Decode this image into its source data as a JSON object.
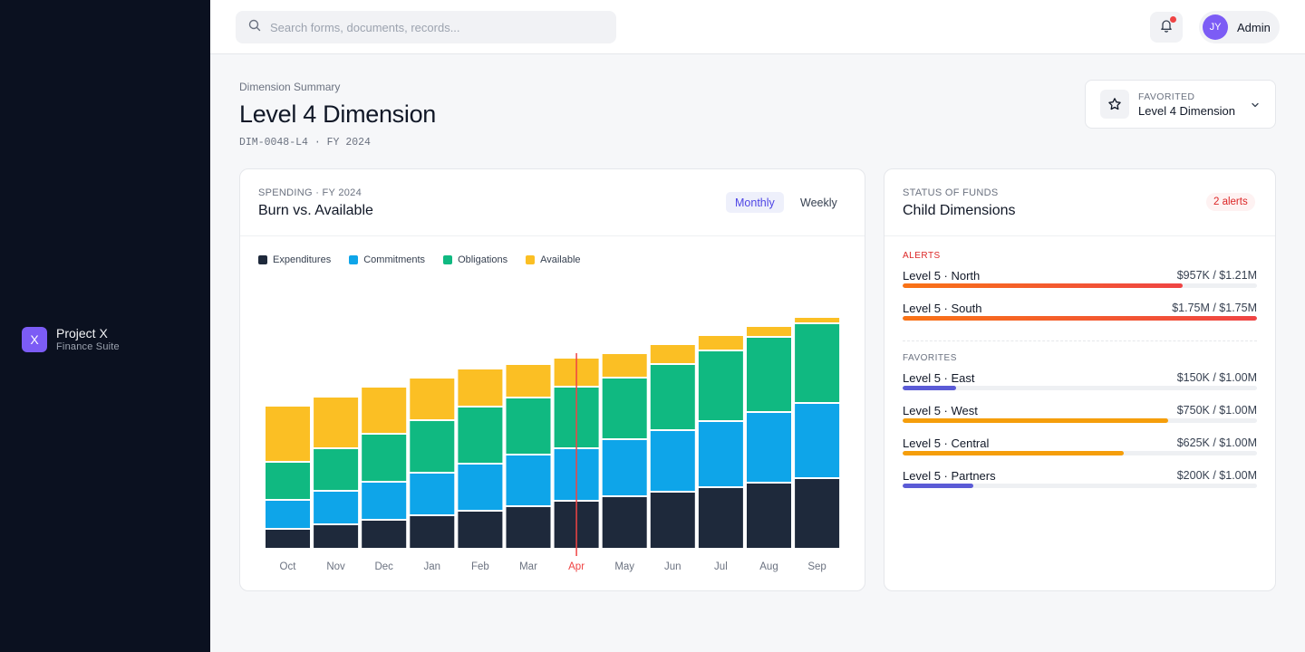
{
  "brand": {
    "logo_letter": "X",
    "name": "Project X",
    "subtitle": "Finance Suite"
  },
  "topbar": {
    "search_placeholder": "Search forms, documents, records...",
    "search_icon": "search-icon",
    "notification_icon": "bell-icon",
    "has_unread": true,
    "user": {
      "initials": "JY",
      "name": "Admin"
    }
  },
  "header": {
    "breadcrumb": "Dimension Summary",
    "title": "Level 4 Dimension",
    "code": "DIM-0048-L4 · FY 2024",
    "favorite": {
      "kicker": "FAVORITED",
      "value": "Level 4 Dimension",
      "icon": "star-icon"
    }
  },
  "spending_card": {
    "kicker": "SPENDING · FY 2024",
    "title": "Burn vs. Available",
    "toggles": [
      {
        "label": "Monthly",
        "active": true
      },
      {
        "label": "Weekly",
        "active": false
      }
    ]
  },
  "chart_data": {
    "type": "bar",
    "stacked": true,
    "categories": [
      "Oct",
      "Nov",
      "Dec",
      "Jan",
      "Feb",
      "Mar",
      "Apr",
      "May",
      "Jun",
      "Jul",
      "Aug",
      "Sep"
    ],
    "series": [
      {
        "name": "Expenditures",
        "color": "#1e293b",
        "values": [
          22,
          27,
          32,
          37,
          42,
          47,
          53,
          58,
          63,
          68,
          73,
          78
        ]
      },
      {
        "name": "Commitments",
        "color": "#0ea5e9",
        "values": [
          32,
          37,
          42,
          47,
          52,
          57,
          58,
          63,
          68,
          73,
          78,
          83
        ]
      },
      {
        "name": "Obligations",
        "color": "#10b981",
        "values": [
          42,
          47,
          53,
          58,
          63,
          63,
          68,
          68,
          73,
          78,
          83,
          88
        ]
      },
      {
        "name": "Available",
        "color": "#fbbf24",
        "values": [
          62,
          57,
          52,
          47,
          42,
          37,
          32,
          27,
          22,
          17,
          12,
          7
        ]
      }
    ],
    "current_marker": "Apr",
    "marker_color": "#ef4444",
    "ylim": [
      0,
      300
    ],
    "grid": false,
    "legend_position": "top-left"
  },
  "funds_card": {
    "kicker": "STATUS OF FUNDS",
    "title": "Child Dimensions",
    "alert_badge": "2 alerts",
    "alerts_label": "ALERTS",
    "favorites_label": "FAVORITES",
    "alerts": [
      {
        "name": "Level 5 · North",
        "amount": "$957K / $1.21M",
        "fraction": 0.79,
        "color": "#ef4444"
      },
      {
        "name": "Level 5 · South",
        "amount": "$1.75M / $1.75M",
        "fraction": 1.0,
        "color": "#ef4444"
      }
    ],
    "favorites": [
      {
        "name": "Level 5 · East",
        "amount": "$150K / $1.00M",
        "fraction": 0.15,
        "color": "#5b5bd6"
      },
      {
        "name": "Level 5 · West",
        "amount": "$750K / $1.00M",
        "fraction": 0.75,
        "color": "#f59e0b"
      },
      {
        "name": "Level 5 · Central",
        "amount": "$625K / $1.00M",
        "fraction": 0.625,
        "color": "#f59e0b"
      },
      {
        "name": "Level 5 · Partners",
        "amount": "$200K / $1.00M",
        "fraction": 0.2,
        "color": "#5b5bd6"
      }
    ]
  }
}
